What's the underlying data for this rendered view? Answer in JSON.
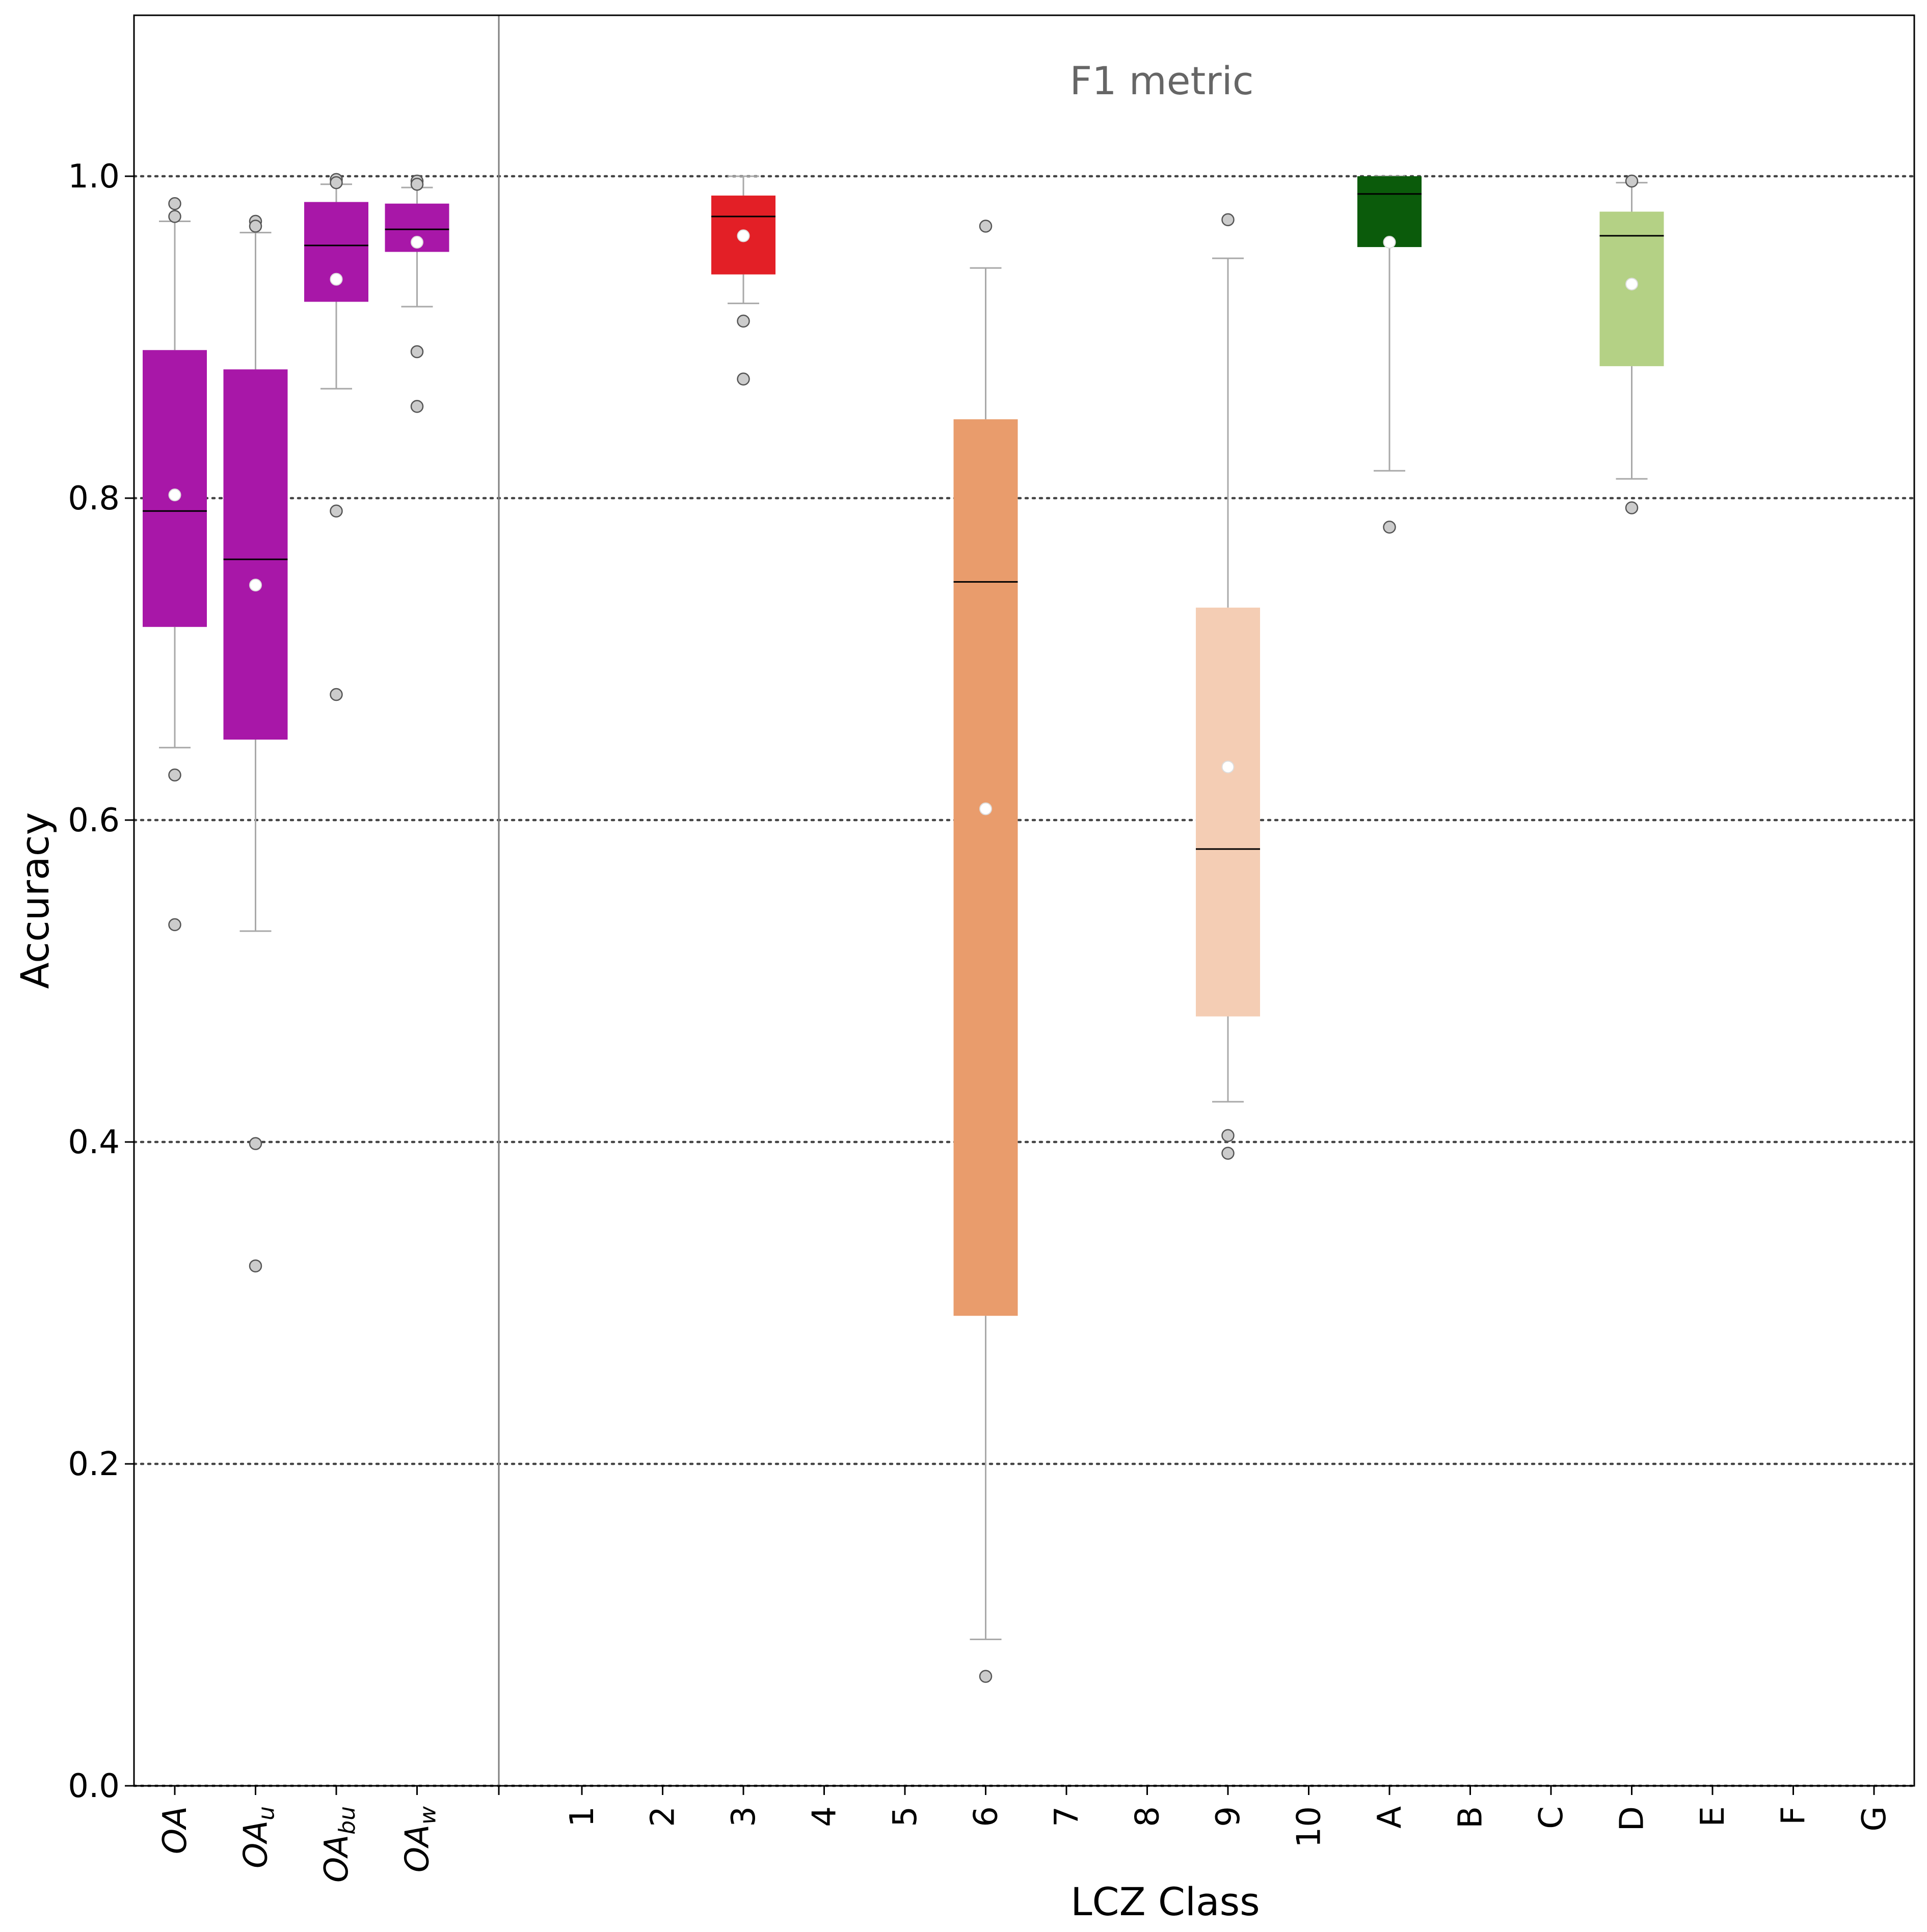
{
  "chart_data": {
    "type": "box",
    "annotation": "F1 metric",
    "xlabel": "LCZ Class",
    "ylabel": "Accuracy",
    "ylim": [
      0.0,
      1.1
    ],
    "yticks": [
      "0.0",
      "0.2",
      "0.4",
      "0.6",
      "0.8",
      "1.0"
    ],
    "grid": "horizontal dotted at y ticks",
    "overall_categories": [
      {
        "main": "OA",
        "sub": ""
      },
      {
        "main": "OA",
        "sub": "u"
      },
      {
        "main": "OA",
        "sub": "bu"
      },
      {
        "main": "OA",
        "sub": "w"
      }
    ],
    "class_categories": [
      "1",
      "2",
      "3",
      "4",
      "5",
      "6",
      "7",
      "8",
      "9",
      "10",
      "A",
      "B",
      "C",
      "D",
      "E",
      "F",
      "G"
    ],
    "boxes": [
      {
        "category": "OA",
        "color": "#a817a8",
        "q1": 0.72,
        "median": 0.792,
        "q3": 0.892,
        "whisker_low": 0.645,
        "whisker_high": 0.972,
        "mean": 0.802,
        "outliers": [
          0.983,
          0.975,
          0.628,
          0.535
        ]
      },
      {
        "category": "OAu",
        "color": "#a817a8",
        "q1": 0.65,
        "median": 0.762,
        "q3": 0.88,
        "whisker_low": 0.531,
        "whisker_high": 0.965,
        "mean": 0.746,
        "outliers": [
          0.972,
          0.969,
          0.399,
          0.323
        ]
      },
      {
        "category": "OAbu",
        "color": "#a817a8",
        "q1": 0.922,
        "median": 0.957,
        "q3": 0.984,
        "whisker_low": 0.868,
        "whisker_high": 0.995,
        "mean": 0.936,
        "outliers": [
          0.998,
          0.996,
          0.792,
          0.678
        ]
      },
      {
        "category": "OAw",
        "color": "#a817a8",
        "q1": 0.953,
        "median": 0.967,
        "q3": 0.983,
        "whisker_low": 0.919,
        "whisker_high": 0.993,
        "mean": 0.959,
        "outliers": [
          0.997,
          0.995,
          0.891,
          0.857
        ]
      },
      {
        "category": "3",
        "color": "#e31f26",
        "q1": 0.939,
        "median": 0.975,
        "q3": 0.988,
        "whisker_low": 0.921,
        "whisker_high": 1.0,
        "mean": 0.963,
        "outliers": [
          0.91,
          0.874
        ]
      },
      {
        "category": "6",
        "color": "#e99c6c",
        "q1": 0.292,
        "median": 0.748,
        "q3": 0.849,
        "whisker_low": 0.091,
        "whisker_high": 0.943,
        "mean": 0.607,
        "outliers": [
          0.969,
          0.068
        ]
      },
      {
        "category": "9",
        "color": "#f4cdb4",
        "q1": 0.478,
        "median": 0.582,
        "q3": 0.732,
        "whisker_low": 0.425,
        "whisker_high": 0.949,
        "mean": 0.633,
        "outliers": [
          0.973,
          0.404,
          0.393
        ]
      },
      {
        "category": "A",
        "color": "#0b5b0b",
        "q1": 0.956,
        "median": 0.989,
        "q3": 1.0,
        "whisker_low": 0.817,
        "whisker_high": 1.0,
        "mean": 0.959,
        "outliers": [
          0.782
        ]
      },
      {
        "category": "D",
        "color": "#b4d185",
        "q1": 0.882,
        "median": 0.963,
        "q3": 0.978,
        "whisker_low": 0.812,
        "whisker_high": 0.996,
        "mean": 0.933,
        "outliers": [
          0.997,
          0.794
        ]
      }
    ]
  },
  "colors": {
    "grid": "#444444",
    "whisker": "#a9a9a9",
    "median": "#000000",
    "mean_fill": "#ffffff",
    "outlier_fill": "#cccccc",
    "outlier_stroke": "#555555",
    "divider": "#7f7f7f"
  }
}
